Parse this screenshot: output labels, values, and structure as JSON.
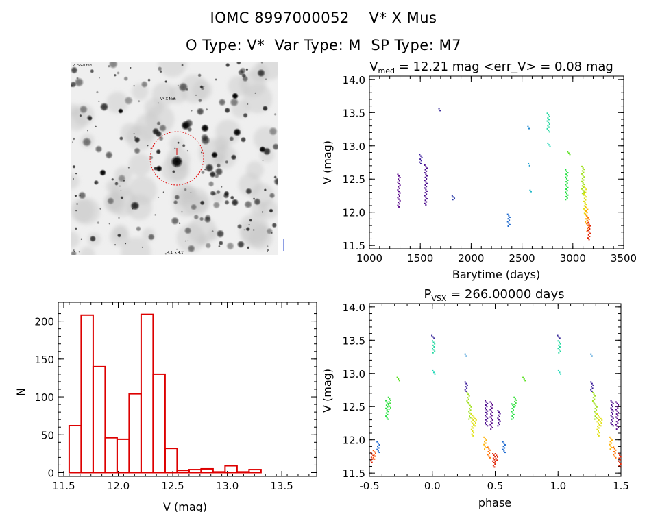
{
  "header": {
    "object_line": "IOMC 8997000052    V* X Mus",
    "type_line": "O Type: V*  Var Type: M  SP Type: M7"
  },
  "image_panel": {
    "top_left_label": "POSS-II red",
    "target_label": "V* X Mus",
    "bottom_center_label": "4.1' x 4.1'",
    "bottom_left_label": "N",
    "bottom_right_label": "E"
  },
  "colors": {
    "histogram": "#dd0000",
    "circle": "#e00000"
  },
  "chart_data": [
    {
      "type": "scatter",
      "title_text": "V",
      "title_sub": "med",
      "title_rest": " = 12.21 mag <err_V> = 0.08 mag",
      "xlabel": "Barytime (days)",
      "ylabel": "V (mag)",
      "xlim": [
        1000,
        3500
      ],
      "ylim": [
        14.05,
        11.45
      ],
      "xticks": [
        "1000",
        "1500",
        "2000",
        "2500",
        "3000",
        "3500"
      ],
      "yticks": [
        "11.5",
        "12.0",
        "12.5",
        "13.0",
        "13.5",
        "14.0"
      ],
      "groups": [
        {
          "x": 1290,
          "y_range": [
            12.07,
            12.58
          ],
          "color": "#5a0a8c"
        },
        {
          "x": 1505,
          "y_range": [
            12.72,
            12.88
          ],
          "color": "#3a1a9a"
        },
        {
          "x": 1555,
          "y_range": [
            12.1,
            12.72
          ],
          "color": "#4a0a8c"
        },
        {
          "x": 1695,
          "y_range": [
            13.52,
            13.57
          ],
          "color": "#3a2a9a"
        },
        {
          "x": 1825,
          "y_range": [
            12.18,
            12.26
          ],
          "color": "#2a3aa8"
        },
        {
          "x": 2370,
          "y_range": [
            11.78,
            11.98
          ],
          "color": "#1e6ad0"
        },
        {
          "x": 2570,
          "y_range": [
            13.25,
            13.3
          ],
          "color": "#1e88d0"
        },
        {
          "x": 2575,
          "y_range": [
            12.69,
            12.74
          ],
          "color": "#20a0d0"
        },
        {
          "x": 2590,
          "y_range": [
            12.3,
            12.34
          ],
          "color": "#22b8c8"
        },
        {
          "x": 2760,
          "y_range": [
            13.2,
            13.5
          ],
          "color": "#22d8a0"
        },
        {
          "x": 2765,
          "y_range": [
            12.98,
            13.05
          ],
          "color": "#22d8b8"
        },
        {
          "x": 2940,
          "y_range": [
            12.18,
            12.65
          ],
          "color": "#22e040"
        },
        {
          "x": 2960,
          "y_range": [
            12.86,
            12.92
          ],
          "color": "#5ae020"
        },
        {
          "x": 3100,
          "y_range": [
            12.25,
            12.7
          ],
          "color": "#a0e020"
        },
        {
          "x": 3120,
          "y_range": [
            11.95,
            12.4
          ],
          "color": "#e0e010"
        },
        {
          "x": 3135,
          "y_range": [
            11.82,
            12.1
          ],
          "color": "#ffb000"
        },
        {
          "x": 3150,
          "y_range": [
            11.7,
            11.95
          ],
          "color": "#ff7000"
        },
        {
          "x": 3160,
          "y_range": [
            11.58,
            11.85
          ],
          "color": "#e02000"
        }
      ]
    },
    {
      "type": "bar",
      "title": "",
      "xlabel": "V (mag)",
      "ylabel": "N",
      "xlim": [
        11.45,
        13.82
      ],
      "ylim": [
        -5,
        225
      ],
      "xticks": [
        "11.5",
        "12.0",
        "12.5",
        "13.0",
        "13.5"
      ],
      "yticks": [
        "0",
        "50",
        "100",
        "150",
        "200"
      ],
      "bin_edges": [
        11.55,
        11.66,
        11.77,
        11.88,
        11.99,
        12.1,
        12.21,
        12.32,
        12.43,
        12.54,
        12.65,
        12.76,
        12.87,
        12.98,
        13.09,
        13.2,
        13.31,
        13.42,
        13.53,
        13.64
      ],
      "values": [
        62,
        208,
        140,
        46,
        44,
        104,
        209,
        130,
        32,
        3,
        4,
        5,
        1,
        9,
        1,
        4,
        0,
        0,
        0
      ]
    },
    {
      "type": "scatter",
      "title_text": "P",
      "title_sub": "VSX",
      "title_rest": " = 266.00000 days",
      "xlabel": "phase",
      "ylabel": "V (mag)",
      "period_days": 266.0,
      "xlim": [
        -0.5,
        1.5
      ],
      "ylim": [
        14.05,
        11.45
      ],
      "xticks": [
        "-0.5",
        "0.0",
        "0.5",
        "1.0",
        "1.5"
      ],
      "yticks": [
        "11.5",
        "12.0",
        "12.5",
        "13.0",
        "13.5",
        "14.0"
      ],
      "groups": [
        {
          "x": -0.48,
          "y_range": [
            11.65,
            11.82
          ],
          "color": "#e02000"
        },
        {
          "x": -0.46,
          "y_range": [
            11.7,
            11.85
          ],
          "color": "#ff5000"
        },
        {
          "x": -0.43,
          "y_range": [
            11.8,
            11.98
          ],
          "color": "#1e6ad0"
        },
        {
          "x": -0.36,
          "y_range": [
            12.3,
            12.6
          ],
          "color": "#22e040"
        },
        {
          "x": -0.34,
          "y_range": [
            12.45,
            12.65
          ],
          "color": "#3ee040"
        },
        {
          "x": -0.27,
          "y_range": [
            12.88,
            12.95
          ],
          "color": "#5ae020"
        },
        {
          "x": 0.005,
          "y_range": [
            13.52,
            13.58
          ],
          "color": "#3a2a9a"
        },
        {
          "x": 0.01,
          "y_range": [
            13.3,
            13.5
          ],
          "color": "#22d8a0"
        },
        {
          "x": 0.012,
          "y_range": [
            12.98,
            13.05
          ],
          "color": "#22d8b8"
        },
        {
          "x": 0.27,
          "y_range": [
            13.25,
            13.3
          ],
          "color": "#1e88d0"
        },
        {
          "x": 0.27,
          "y_range": [
            12.72,
            12.88
          ],
          "color": "#3a1a9a"
        },
        {
          "x": 0.285,
          "y_range": [
            12.55,
            12.72
          ],
          "color": "#a0e020"
        },
        {
          "x": 0.3,
          "y_range": [
            12.3,
            12.55
          ],
          "color": "#a0e020"
        },
        {
          "x": 0.32,
          "y_range": [
            12.05,
            12.4
          ],
          "color": "#e0e010"
        },
        {
          "x": 0.34,
          "y_range": [
            12.2,
            12.35
          ],
          "color": "#e0e010"
        },
        {
          "x": 0.42,
          "y_range": [
            11.85,
            12.05
          ],
          "color": "#ffb000"
        },
        {
          "x": 0.43,
          "y_range": [
            12.2,
            12.6
          ],
          "color": "#4a0a8c"
        },
        {
          "x": 0.45,
          "y_range": [
            11.72,
            11.9
          ],
          "color": "#ff7000"
        },
        {
          "x": 0.47,
          "y_range": [
            12.15,
            12.58
          ],
          "color": "#5a0a8c"
        },
        {
          "x": 0.49,
          "y_range": [
            11.58,
            11.8
          ],
          "color": "#e02000"
        },
        {
          "x": 0.51,
          "y_range": [
            11.66,
            11.8
          ],
          "color": "#e02000"
        },
        {
          "x": 0.53,
          "y_range": [
            12.2,
            12.45
          ],
          "color": "#4a0a8c"
        },
        {
          "x": 0.57,
          "y_range": [
            11.8,
            11.98
          ],
          "color": "#1e6ad0"
        },
        {
          "x": 0.64,
          "y_range": [
            12.3,
            12.55
          ],
          "color": "#22e040"
        },
        {
          "x": 0.66,
          "y_range": [
            12.5,
            12.65
          ],
          "color": "#3ee040"
        },
        {
          "x": 0.73,
          "y_range": [
            12.88,
            12.95
          ],
          "color": "#5ae020"
        },
        {
          "x": 1.005,
          "y_range": [
            13.52,
            13.58
          ],
          "color": "#3a2a9a"
        },
        {
          "x": 1.01,
          "y_range": [
            13.3,
            13.5
          ],
          "color": "#22d8a0"
        },
        {
          "x": 1.012,
          "y_range": [
            12.98,
            13.05
          ],
          "color": "#22d8b8"
        },
        {
          "x": 1.27,
          "y_range": [
            13.25,
            13.3
          ],
          "color": "#1e88d0"
        },
        {
          "x": 1.27,
          "y_range": [
            12.72,
            12.88
          ],
          "color": "#3a1a9a"
        },
        {
          "x": 1.285,
          "y_range": [
            12.55,
            12.72
          ],
          "color": "#a0e020"
        },
        {
          "x": 1.3,
          "y_range": [
            12.3,
            12.55
          ],
          "color": "#a0e020"
        },
        {
          "x": 1.32,
          "y_range": [
            12.05,
            12.4
          ],
          "color": "#e0e010"
        },
        {
          "x": 1.34,
          "y_range": [
            12.2,
            12.35
          ],
          "color": "#e0e010"
        },
        {
          "x": 1.42,
          "y_range": [
            11.85,
            12.05
          ],
          "color": "#ffb000"
        },
        {
          "x": 1.43,
          "y_range": [
            12.2,
            12.6
          ],
          "color": "#4a0a8c"
        },
        {
          "x": 1.45,
          "y_range": [
            11.72,
            11.9
          ],
          "color": "#ff7000"
        },
        {
          "x": 1.47,
          "y_range": [
            12.15,
            12.58
          ],
          "color": "#5a0a8c"
        },
        {
          "x": 1.49,
          "y_range": [
            11.58,
            11.8
          ],
          "color": "#e02000"
        }
      ]
    }
  ]
}
